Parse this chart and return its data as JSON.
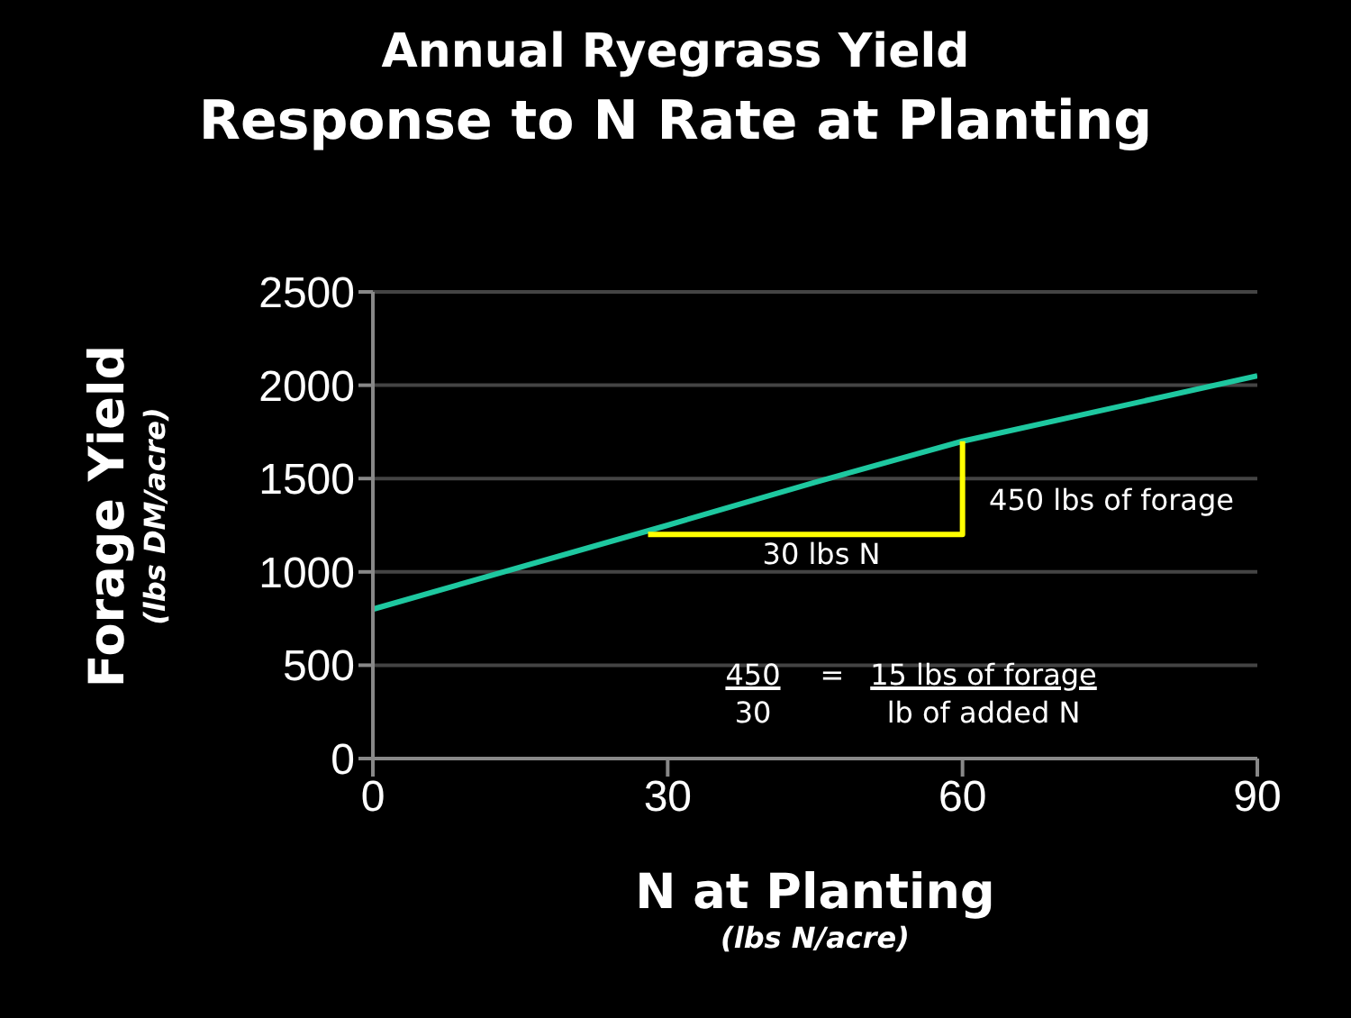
{
  "chart_data": {
    "type": "line",
    "title": "Annual Ryegrass Yield",
    "subtitle": "Response to N Rate at Planting",
    "xlabel": "N at Planting\n(lbs N/acre)",
    "ylabel": "Forage Yield\n(lbs DM/acre)",
    "series": [
      {
        "color": "#1ec8a0",
        "x": [
          0,
          30,
          45,
          60,
          90
        ],
        "values": [
          800,
          1250,
          1480,
          1700,
          2050
        ]
      },
      {
        "color": "#ffff00",
        "x": [
          28,
          60,
          60
        ],
        "values": [
          1200,
          1200,
          1700
        ]
      }
    ],
    "annotations": [
      "30 lbs N",
      "450 lbs of forage",
      "450",
      "30",
      "=",
      "15 lbs of forage",
      "lb of added N"
    ],
    "xlim": [
      0,
      90
    ],
    "xticks": [
      0,
      30,
      60,
      90
    ],
    "ylim": [
      0,
      2500
    ],
    "yticks": [
      0,
      500,
      1000,
      1500,
      2000,
      2500
    ],
    "grid": "y",
    "marker": "none",
    "line_style": "solid"
  }
}
